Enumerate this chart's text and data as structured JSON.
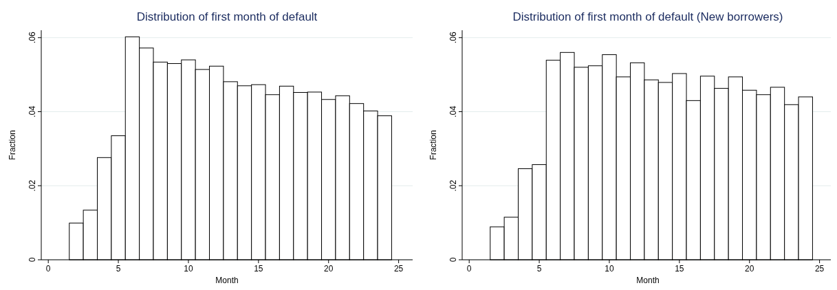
{
  "chart_data": [
    {
      "type": "histogram",
      "title": "Distribution of first month of default",
      "xlabel": "Month",
      "ylabel": "Fraction",
      "bins": [
        1.5,
        2.5,
        3.5,
        4.5,
        5.5,
        6.5,
        7.5,
        8.5,
        9.5,
        10.5,
        11.5,
        12.5,
        13.5,
        14.5,
        15.5,
        16.5,
        17.5,
        18.5,
        19.5,
        20.5,
        21.5,
        22.5,
        23.5,
        24.5
      ],
      "values": [
        0.0099,
        0.0134,
        0.0276,
        0.0335,
        0.0602,
        0.0572,
        0.0534,
        0.053,
        0.054,
        0.0514,
        0.0523,
        0.0481,
        0.047,
        0.0473,
        0.0446,
        0.0469,
        0.0452,
        0.0453,
        0.0433,
        0.0443,
        0.0422,
        0.0402,
        0.0389
      ],
      "color": "#ffffff",
      "xlim": [
        -0.5,
        26
      ],
      "xticks": [
        0,
        5,
        10,
        15,
        20,
        25
      ],
      "ylim": [
        0,
        0.062
      ],
      "yticks": [
        {
          "value": 0,
          "label": "0"
        },
        {
          "value": 0.02,
          "label": ".02"
        },
        {
          "value": 0.04,
          "label": ".04"
        },
        {
          "value": 0.06,
          "label": ".06"
        }
      ],
      "grid": "y"
    },
    {
      "type": "histogram",
      "title": "Distribution of first month of default (New borrowers)",
      "xlabel": "Month",
      "ylabel": "Fraction",
      "bins": [
        1.5,
        2.5,
        3.5,
        4.5,
        5.5,
        6.5,
        7.5,
        8.5,
        9.5,
        10.5,
        11.5,
        12.5,
        13.5,
        14.5,
        15.5,
        16.5,
        17.5,
        18.5,
        19.5,
        20.5,
        21.5,
        22.5,
        23.5,
        24.5
      ],
      "values": [
        0.0089,
        0.0115,
        0.0246,
        0.0257,
        0.0539,
        0.056,
        0.052,
        0.0524,
        0.0554,
        0.0494,
        0.0532,
        0.0486,
        0.0479,
        0.0503,
        0.043,
        0.0496,
        0.0463,
        0.0494,
        0.0458,
        0.0446,
        0.0466,
        0.0419,
        0.044
      ],
      "color": "#ffffff",
      "xlim": [
        -0.5,
        26
      ],
      "xticks": [
        0,
        5,
        10,
        15,
        20,
        25
      ],
      "ylim": [
        0,
        0.062
      ],
      "yticks": [
        {
          "value": 0,
          "label": "0"
        },
        {
          "value": 0.02,
          "label": ".02"
        },
        {
          "value": 0.04,
          "label": ".04"
        },
        {
          "value": 0.06,
          "label": ".06"
        }
      ],
      "grid": "y"
    }
  ]
}
